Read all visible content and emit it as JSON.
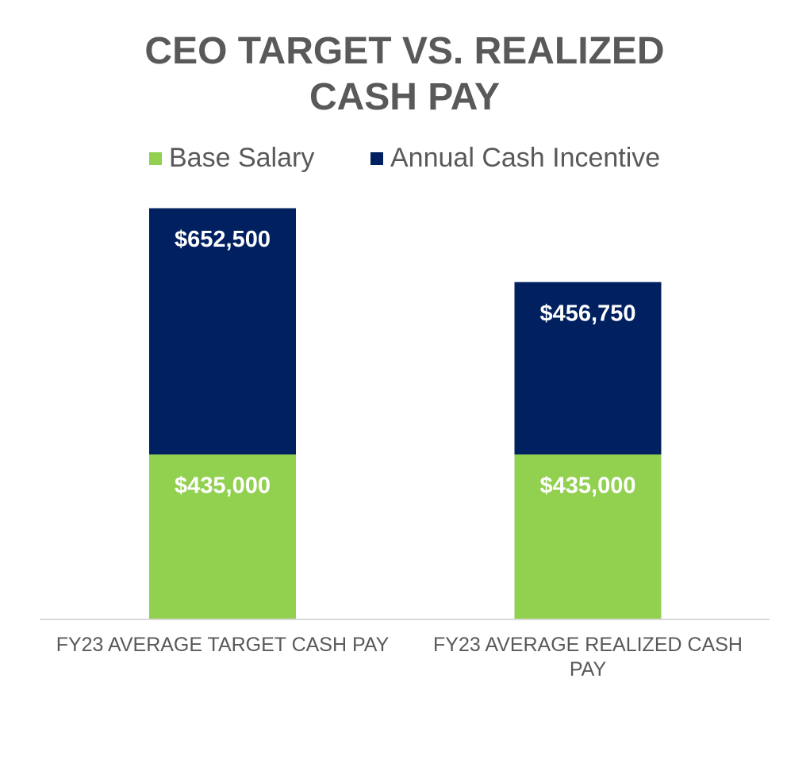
{
  "chart_data": {
    "type": "stacked_bar",
    "title": "CEO TARGET VS. REALIZED CASH PAY",
    "categories": [
      "FY23 AVERAGE TARGET CASH PAY",
      "FY23 AVERAGE REALIZED CASH PAY"
    ],
    "series": [
      {
        "name": "Base Salary",
        "color": "#92d050",
        "values": [
          435000,
          435000
        ],
        "value_labels": [
          "$435,000",
          "$435,000"
        ]
      },
      {
        "name": "Annual Cash Incentive",
        "color": "#002060",
        "values": [
          652500,
          456750
        ],
        "value_labels": [
          "$652,500",
          "$456,750"
        ]
      }
    ],
    "ylim": [
      0,
      1200000
    ],
    "legend": "top"
  }
}
